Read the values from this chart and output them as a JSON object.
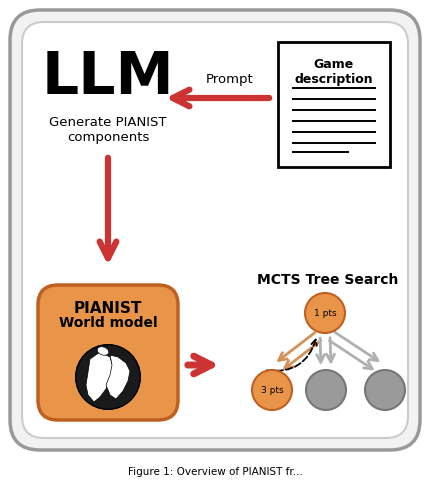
{
  "bg_outer": "#e0e0e0",
  "bg_inner": "#ffffff",
  "outer_edge": "#999999",
  "inner_edge": "#cccccc",
  "llm_text": "LLM",
  "llm_sub": "Generate PIANIST\ncomponents",
  "prompt_text": "Prompt",
  "game_title": "Game\ndescription",
  "mcts_title": "MCTS Tree Search",
  "pianist1": "PIANIST",
  "pianist2": "World model",
  "node_label_top": "1 pts",
  "node_label_bl": "3 pts",
  "arrow_red": "#cc3333",
  "orange_node": "#e8954a",
  "orange_edge": "#c06020",
  "gray_node": "#9a9a9a",
  "gray_edge": "#777777",
  "orange_arr": "#d4915a",
  "gray_arr": "#b0b0b0",
  "globe_bg": "#e8954a",
  "globe_dark": "#1a1a1a",
  "caption": "Figure 1: Overview of PIANIST fr..."
}
